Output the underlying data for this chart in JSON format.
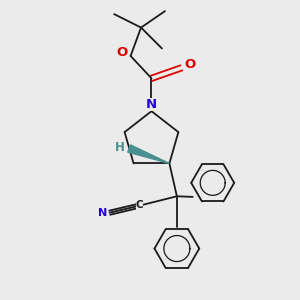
{
  "bg_color": "#ebebeb",
  "bond_color": "#1a1a1a",
  "bond_width": 1.3,
  "N_color": "#2200dd",
  "O_color": "#dd0000",
  "H_color": "#4a9090",
  "figsize": [
    3.0,
    3.0
  ],
  "dpi": 100,
  "xlim": [
    0,
    10
  ],
  "ylim": [
    0,
    10
  ]
}
